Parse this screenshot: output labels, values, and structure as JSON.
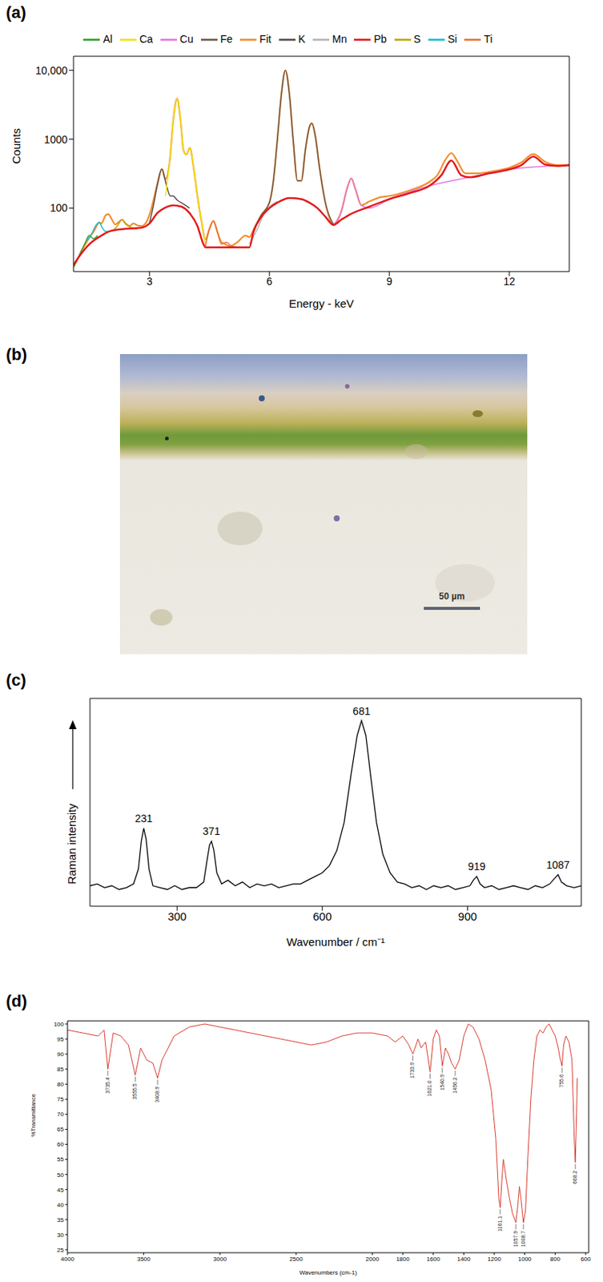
{
  "chart_data": [
    {
      "panel_label": "(a)",
      "type": "line",
      "x_label": "Energy - keV",
      "y_label": "Counts",
      "xlim": [
        1.1,
        13.5
      ],
      "xticks": [
        3,
        6,
        9,
        12
      ],
      "ylim": [
        12,
        16000
      ],
      "yticks": [
        100,
        1000,
        {
          "value": 10000,
          "label": "10,000"
        }
      ],
      "log": "y",
      "legend": "top",
      "series": [
        {
          "name": "Fit",
          "color": "#f28e2b",
          "x": [
            1.1,
            1.2,
            1.3,
            1.4,
            1.5,
            1.6,
            1.7,
            1.75,
            1.8,
            1.9,
            1.97,
            2.05,
            2.15,
            2.25,
            2.32,
            2.4,
            2.5,
            2.6,
            2.7,
            2.8,
            2.9,
            3.0,
            3.1,
            3.2,
            3.31,
            3.4,
            3.5,
            3.6,
            3.69,
            3.78,
            3.85,
            3.92,
            4.01,
            4.1,
            4.2,
            4.3,
            4.4,
            4.5,
            4.6,
            4.7,
            4.8,
            4.9,
            5.0,
            5.2,
            5.4,
            5.5,
            5.6,
            5.8,
            6.0,
            6.1,
            6.2,
            6.3,
            6.4,
            6.5,
            6.6,
            6.7,
            6.8,
            6.9,
            7.0,
            7.06,
            7.15,
            7.25,
            7.4,
            7.6,
            7.8,
            7.95,
            8.05,
            8.15,
            8.3,
            8.5,
            8.8,
            9.0,
            9.5,
            10.0,
            10.2,
            10.4,
            10.55,
            10.7,
            10.9,
            11.2,
            11.6,
            12.0,
            12.3,
            12.6,
            12.9,
            13.2,
            13.5
          ],
          "values": [
            14,
            18,
            24,
            30,
            38,
            45,
            58,
            62,
            60,
            78,
            82,
            70,
            58,
            64,
            68,
            60,
            55,
            60,
            56,
            55,
            60,
            80,
            130,
            230,
            370,
            260,
            450,
            2000,
            3900,
            1800,
            700,
            600,
            750,
            400,
            150,
            65,
            35,
            50,
            65,
            45,
            32,
            30,
            28,
            32,
            40,
            38,
            48,
            80,
            120,
            250,
            1000,
            4500,
            10000,
            4500,
            900,
            250,
            250,
            700,
            1500,
            1700,
            1100,
            400,
            120,
            58,
            90,
            200,
            270,
            190,
            110,
            125,
            145,
            150,
            180,
            240,
            300,
            500,
            630,
            480,
            320,
            320,
            345,
            385,
            460,
            610,
            470,
            420,
            425
          ]
        },
        {
          "name": "Al",
          "color": "#2ca02c",
          "x": [
            1.1,
            1.2,
            1.3,
            1.4,
            1.49,
            1.6,
            1.7
          ],
          "values": [
            14,
            18,
            24,
            32,
            40,
            36,
            40
          ]
        },
        {
          "name": "Si",
          "color": "#17becf",
          "x": [
            1.45,
            1.55,
            1.65,
            1.74,
            1.82,
            1.9,
            2.0
          ],
          "values": [
            34,
            42,
            55,
            62,
            52,
            46,
            46
          ]
        },
        {
          "name": "S",
          "color": "#bfa600",
          "x": [
            2.1,
            2.2,
            2.31,
            2.42,
            2.55,
            2.7
          ],
          "values": [
            48,
            55,
            68,
            58,
            52,
            50
          ]
        },
        {
          "name": "K",
          "color": "#5c4b4b",
          "x": [
            3.0,
            3.1,
            3.2,
            3.31,
            3.42,
            3.52,
            3.59,
            3.7,
            3.85,
            4.0
          ],
          "values": [
            60,
            110,
            220,
            370,
            220,
            150,
            150,
            130,
            115,
            100
          ]
        },
        {
          "name": "Ca",
          "color": "#f2e30d",
          "x": [
            3.4,
            3.5,
            3.6,
            3.69,
            3.78,
            3.85,
            3.92,
            4.01,
            4.1,
            4.2,
            4.3,
            4.4
          ],
          "values": [
            150,
            450,
            2000,
            3900,
            1800,
            700,
            600,
            750,
            400,
            150,
            65,
            30
          ]
        },
        {
          "name": "Ti",
          "color": "#e8743b",
          "x": [
            4.4,
            4.5,
            4.6,
            4.7,
            4.8,
            4.93,
            5.05,
            5.2
          ],
          "values": [
            28,
            50,
            65,
            45,
            30,
            32,
            28,
            27
          ]
        },
        {
          "name": "Mn",
          "color": "#b5b5b5",
          "x": [
            5.5,
            5.7,
            5.9,
            6.05,
            6.2
          ],
          "values": [
            30,
            50,
            90,
            110,
            125
          ]
        },
        {
          "name": "Fe",
          "color": "#6e5a4e",
          "x": [
            5.6,
            5.8,
            6.0,
            6.1,
            6.2,
            6.3,
            6.4,
            6.5,
            6.6,
            6.7,
            6.8,
            6.9,
            7.0,
            7.06,
            7.15,
            7.25,
            7.4,
            7.6
          ],
          "values": [
            48,
            80,
            120,
            250,
            1000,
            4500,
            10000,
            4500,
            900,
            250,
            250,
            700,
            1500,
            1700,
            1100,
            400,
            120,
            58
          ]
        },
        {
          "name": "Cu",
          "color": "#e377e3",
          "x": [
            7.6,
            7.8,
            7.95,
            8.05,
            8.15,
            8.3,
            8.5,
            9.0,
            10.0,
            11.0,
            12.0,
            13.5
          ],
          "values": [
            57,
            90,
            200,
            270,
            190,
            110,
            100,
            135,
            210,
            280,
            365,
            420
          ]
        },
        {
          "name": "Pb",
          "color": "#e31a1c",
          "x": [
            1.1,
            1.3,
            1.5,
            1.8,
            2.0,
            2.4,
            2.8,
            3.0,
            3.2,
            3.4,
            3.6,
            3.8,
            4.0,
            4.2,
            4.35,
            4.4,
            5.0,
            5.5,
            5.6,
            5.8,
            6.0,
            6.2,
            6.5,
            6.8,
            7.0,
            7.2,
            7.4,
            7.6,
            7.8,
            8.0,
            8.5,
            9.0,
            9.5,
            10.0,
            10.3,
            10.55,
            10.8,
            11.0,
            11.5,
            12.0,
            12.3,
            12.6,
            12.9,
            13.2,
            13.5
          ],
          "values": [
            15,
            22,
            30,
            40,
            46,
            50,
            52,
            60,
            85,
            102,
            110,
            105,
            85,
            55,
            30,
            27,
            27,
            27,
            45,
            75,
            100,
            120,
            140,
            135,
            120,
            100,
            75,
            57,
            68,
            80,
            105,
            135,
            165,
            210,
            300,
            490,
            300,
            280,
            320,
            365,
            420,
            560,
            430,
            410,
            420
          ]
        }
      ]
    },
    {
      "panel_label": "(c)",
      "type": "line",
      "x_label": "Wavenumber / cm⁻¹",
      "y_label": "Raman intensity",
      "xlim": [
        120,
        1135
      ],
      "xticks": [
        300,
        600,
        900
      ],
      "ylim": [
        0,
        112
      ],
      "tick_labels": "x",
      "color": "#000000",
      "x": [
        120,
        135,
        150,
        165,
        180,
        195,
        210,
        220,
        226,
        231,
        236,
        242,
        250,
        265,
        280,
        295,
        310,
        325,
        340,
        355,
        362,
        367,
        371,
        376,
        382,
        392,
        405,
        420,
        435,
        450,
        465,
        480,
        495,
        510,
        525,
        540,
        555,
        570,
        585,
        600,
        615,
        630,
        645,
        660,
        672,
        681,
        690,
        700,
        712,
        725,
        740,
        755,
        770,
        785,
        800,
        815,
        830,
        845,
        860,
        875,
        890,
        905,
        912,
        919,
        926,
        935,
        950,
        965,
        980,
        995,
        1010,
        1025,
        1040,
        1055,
        1070,
        1080,
        1087,
        1094,
        1105,
        1120,
        1135
      ],
      "values": [
        11,
        12,
        10,
        11,
        9,
        10,
        12,
        20,
        35,
        42,
        36,
        20,
        11,
        10,
        9,
        11,
        9,
        10,
        10,
        13,
        25,
        33,
        35,
        30,
        18,
        12,
        14,
        11,
        13,
        10,
        12,
        11,
        12,
        10,
        11,
        12,
        12,
        14,
        16,
        18,
        22,
        30,
        45,
        72,
        92,
        100,
        92,
        70,
        45,
        28,
        18,
        13,
        12,
        10,
        11,
        9,
        11,
        10,
        11,
        9,
        10,
        11,
        14,
        16,
        12,
        10,
        11,
        9,
        10,
        11,
        10,
        9,
        11,
        10,
        12,
        15,
        17,
        13,
        11,
        10,
        11
      ],
      "peaks": {
        "x": [
          231,
          371,
          681,
          919,
          1087
        ],
        "values": [
          42,
          35,
          100,
          16,
          17
        ]
      }
    },
    {
      "panel_label": "(d)",
      "type": "line",
      "x_label": "Wavenumbers (cm-1)",
      "y_label": "%Transmittance",
      "xlim": [
        4000,
        580
      ],
      "xticks": [
        4000,
        3500,
        3000,
        2500,
        2000,
        1800,
        1600,
        1400,
        1200,
        1000,
        800,
        600
      ],
      "ylim": [
        24,
        101
      ],
      "yticks": [
        25,
        30,
        35,
        40,
        45,
        50,
        55,
        60,
        65,
        70,
        75,
        80,
        85,
        90,
        95,
        100
      ],
      "color": "#d93a2f",
      "x": [
        4000,
        3900,
        3800,
        3760,
        3735.4,
        3700,
        3650,
        3600,
        3555.5,
        3520,
        3480,
        3440,
        3408.9,
        3380,
        3300,
        3200,
        3100,
        3000,
        2900,
        2800,
        2600,
        2400,
        2300,
        2200,
        2100,
        2000,
        1900,
        1850,
        1800,
        1760,
        1733.9,
        1700,
        1680,
        1650,
        1621,
        1600,
        1580,
        1560,
        1540.9,
        1520,
        1500,
        1480,
        1456.2,
        1430,
        1400,
        1370,
        1340,
        1300,
        1260,
        1220,
        1190,
        1170,
        1161.1,
        1150,
        1140,
        1120,
        1100,
        1080,
        1057.9,
        1045,
        1035,
        1025,
        1008.7,
        995,
        980,
        960,
        940,
        920,
        900,
        880,
        860,
        840,
        820,
        800,
        780,
        770,
        755.6,
        745,
        730,
        710,
        690,
        675,
        668.2,
        660,
        655
      ],
      "values": [
        98,
        97,
        96,
        98,
        85,
        97,
        96,
        93,
        83,
        92,
        88,
        87,
        82,
        88,
        96,
        99,
        100,
        99,
        98,
        97,
        95,
        93,
        94,
        96,
        97,
        97,
        96,
        94,
        96,
        93,
        90,
        95,
        92,
        94,
        84,
        95,
        98,
        96,
        86,
        92,
        90,
        87,
        85,
        88,
        96,
        100,
        99,
        95,
        88,
        78,
        62,
        42,
        39,
        48,
        55,
        48,
        42,
        37,
        34,
        40,
        46,
        42,
        34,
        38,
        55,
        75,
        88,
        96,
        98,
        97,
        99,
        100,
        98,
        96,
        92,
        89,
        86,
        93,
        96,
        94,
        88,
        62,
        54,
        70,
        82
      ],
      "peaks": {
        "x": [
          3735.4,
          3555.5,
          3408.9,
          1733.9,
          1621,
          1540.9,
          1456.2,
          1161.1,
          1057.9,
          1008.7,
          755.6,
          668.2
        ],
        "values": [
          85,
          83,
          82,
          90,
          84,
          86,
          85,
          39,
          34,
          34,
          86,
          54
        ],
        "value_labels": [
          "3735.4",
          "3555.5",
          "3408.9",
          "1733.9",
          "1621.0",
          "1540.9",
          "1456.2",
          "1161.1",
          "1057.9",
          "1008.7",
          "755.6",
          "668.2"
        ]
      }
    }
  ],
  "image": {
    "panel_label": "(b)",
    "scale_bar": "50 µm"
  }
}
